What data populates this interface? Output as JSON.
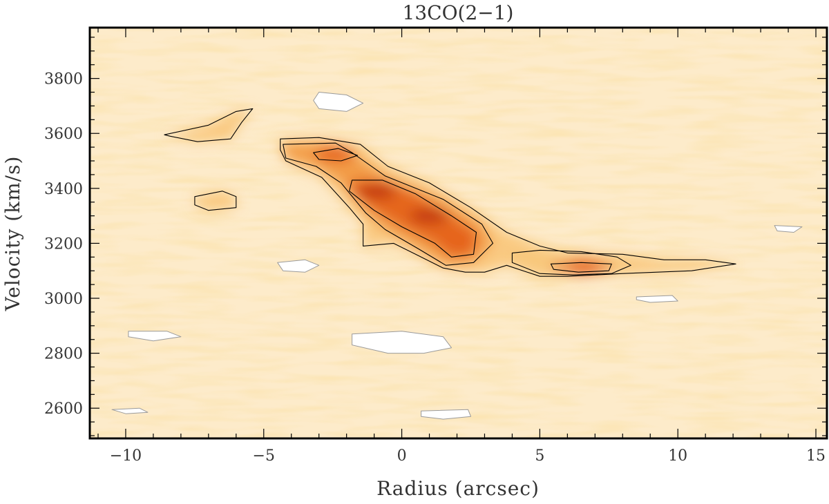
{
  "chart_data": {
    "type": "heatmap",
    "title": "13CO(2−1)",
    "xlabel": "Radius (arcsec)",
    "ylabel": "Velocity (km/s)",
    "xlim": [
      -11.3,
      15.4
    ],
    "ylim": [
      2490,
      3985
    ],
    "x_ticks": [
      -10,
      -5,
      0,
      5,
      10,
      15
    ],
    "x_tick_labels": [
      "−10",
      "−5",
      "0",
      "5",
      "10",
      "15"
    ],
    "y_ticks": [
      2600,
      2800,
      3000,
      3200,
      3400,
      3600,
      3800
    ],
    "y_tick_labels": [
      "2600",
      "2800",
      "3000",
      "3200",
      "3400",
      "3600",
      "3800"
    ],
    "colormap": [
      "#ffffff",
      "#fde9c6",
      "#f9c77c",
      "#f39a45",
      "#e5641c",
      "#c0360e"
    ],
    "contour_color": "#000000",
    "negative_contour_color": "#9a9a9a",
    "emission_ridge": [
      {
        "x": -4.2,
        "y": 3550
      },
      {
        "x": -2.5,
        "y": 3530
      },
      {
        "x": -1.0,
        "y": 3400
      },
      {
        "x": 0.5,
        "y": 3320
      },
      {
        "x": 2.0,
        "y": 3220
      },
      {
        "x": 4.0,
        "y": 3150
      },
      {
        "x": 6.5,
        "y": 3120
      },
      {
        "x": 9.0,
        "y": 3110
      },
      {
        "x": 12.0,
        "y": 3120
      }
    ],
    "peaks": [
      {
        "x": -2.4,
        "y": 3525,
        "level": "high"
      },
      {
        "x": -0.9,
        "y": 3390,
        "level": "peak"
      },
      {
        "x": 1.0,
        "y": 3300,
        "level": "peak"
      },
      {
        "x": 2.0,
        "y": 3210,
        "level": "high"
      },
      {
        "x": 6.6,
        "y": 3115,
        "level": "high"
      }
    ],
    "contours": [
      {
        "level": 1,
        "points": [
          [
            -4.4,
            3580
          ],
          [
            -3.0,
            3585
          ],
          [
            -1.5,
            3560
          ],
          [
            -0.5,
            3480
          ],
          [
            1.0,
            3420
          ],
          [
            2.5,
            3330
          ],
          [
            3.8,
            3240
          ],
          [
            5.0,
            3190
          ],
          [
            6.0,
            3165
          ],
          [
            8.0,
            3160
          ],
          [
            9.5,
            3140
          ],
          [
            11.0,
            3140
          ],
          [
            12.1,
            3125
          ],
          [
            10.5,
            3100
          ],
          [
            8.0,
            3090
          ],
          [
            6.0,
            3080
          ],
          [
            5.0,
            3080
          ],
          [
            3.8,
            3120
          ],
          [
            3.0,
            3095
          ],
          [
            2.3,
            3095
          ],
          [
            1.5,
            3110
          ],
          [
            0.5,
            3160
          ],
          [
            -0.3,
            3200
          ],
          [
            -1.4,
            3190
          ],
          [
            -1.4,
            3270
          ],
          [
            -1.9,
            3330
          ],
          [
            -2.9,
            3440
          ],
          [
            -4.2,
            3500
          ],
          [
            -4.4,
            3540
          ]
        ]
      },
      {
        "level": 2,
        "points": [
          [
            -4.3,
            3560
          ],
          [
            -2.4,
            3565
          ],
          [
            -1.8,
            3530
          ],
          [
            -0.6,
            3445
          ],
          [
            1.5,
            3360
          ],
          [
            2.9,
            3270
          ],
          [
            3.3,
            3200
          ],
          [
            2.6,
            3130
          ],
          [
            1.6,
            3120
          ],
          [
            0.6,
            3180
          ],
          [
            -0.6,
            3250
          ],
          [
            -1.3,
            3310
          ],
          [
            -2.2,
            3420
          ],
          [
            -3.1,
            3480
          ],
          [
            -4.2,
            3510
          ]
        ]
      },
      {
        "level": 3,
        "points": [
          [
            -1.8,
            3430
          ],
          [
            -0.7,
            3430
          ],
          [
            0.5,
            3380
          ],
          [
            1.8,
            3300
          ],
          [
            2.7,
            3240
          ],
          [
            2.6,
            3160
          ],
          [
            1.8,
            3150
          ],
          [
            1.2,
            3200
          ],
          [
            0.0,
            3260
          ],
          [
            -1.0,
            3320
          ],
          [
            -1.9,
            3390
          ]
        ]
      },
      {
        "level": 4,
        "points": [
          [
            -3.2,
            3530
          ],
          [
            -2.3,
            3545
          ],
          [
            -1.6,
            3520
          ],
          [
            -2.2,
            3500
          ],
          [
            -3.0,
            3505
          ]
        ]
      },
      {
        "level": 4,
        "points": [
          [
            5.4,
            3125
          ],
          [
            6.5,
            3130
          ],
          [
            7.6,
            3125
          ],
          [
            7.5,
            3100
          ],
          [
            6.4,
            3095
          ],
          [
            5.5,
            3105
          ]
        ]
      },
      {
        "level": 1,
        "points": [
          [
            4.0,
            3165
          ],
          [
            5.0,
            3175
          ],
          [
            6.5,
            3170
          ],
          [
            7.8,
            3150
          ],
          [
            8.3,
            3120
          ],
          [
            7.6,
            3090
          ],
          [
            6.2,
            3085
          ],
          [
            5.0,
            3090
          ],
          [
            4.0,
            3130
          ]
        ]
      },
      {
        "level": 1,
        "points": [
          [
            -8.6,
            3595
          ],
          [
            -7.0,
            3630
          ],
          [
            -6.0,
            3680
          ],
          [
            -5.4,
            3690
          ],
          [
            -5.8,
            3640
          ],
          [
            -6.2,
            3580
          ],
          [
            -7.4,
            3570
          ],
          [
            -8.4,
            3590
          ]
        ]
      },
      {
        "level": 1,
        "points": [
          [
            -7.5,
            3370
          ],
          [
            -6.5,
            3390
          ],
          [
            -6.0,
            3370
          ],
          [
            -6.0,
            3330
          ],
          [
            -7.0,
            3320
          ],
          [
            -7.5,
            3340
          ]
        ]
      }
    ],
    "negative_contours": [
      {
        "points": [
          [
            -9.9,
            2880
          ],
          [
            -8.5,
            2880
          ],
          [
            -8.0,
            2860
          ],
          [
            -9.0,
            2845
          ],
          [
            -9.9,
            2860
          ]
        ]
      },
      {
        "points": [
          [
            -4.5,
            3130
          ],
          [
            -3.5,
            3140
          ],
          [
            -3.0,
            3120
          ],
          [
            -3.5,
            3095
          ],
          [
            -4.3,
            3100
          ]
        ]
      },
      {
        "points": [
          [
            -1.8,
            2870
          ],
          [
            0.0,
            2880
          ],
          [
            1.5,
            2860
          ],
          [
            1.8,
            2820
          ],
          [
            0.8,
            2800
          ],
          [
            -0.5,
            2800
          ],
          [
            -1.8,
            2830
          ]
        ]
      },
      {
        "points": [
          [
            -3.0,
            3750
          ],
          [
            -2.0,
            3740
          ],
          [
            -1.4,
            3710
          ],
          [
            -2.0,
            3680
          ],
          [
            -3.0,
            3690
          ],
          [
            -3.2,
            3720
          ]
        ]
      },
      {
        "points": [
          [
            0.7,
            2590
          ],
          [
            2.4,
            2595
          ],
          [
            2.5,
            2570
          ],
          [
            1.5,
            2560
          ],
          [
            0.7,
            2570
          ]
        ]
      },
      {
        "points": [
          [
            8.5,
            3005
          ],
          [
            9.8,
            3010
          ],
          [
            10.0,
            2990
          ],
          [
            9.0,
            2985
          ],
          [
            8.5,
            2995
          ]
        ]
      },
      {
        "points": [
          [
            -10.5,
            2595
          ],
          [
            -9.5,
            2600
          ],
          [
            -9.2,
            2585
          ],
          [
            -10.0,
            2580
          ]
        ]
      },
      {
        "points": [
          [
            13.5,
            3265
          ],
          [
            14.5,
            3260
          ],
          [
            14.2,
            3240
          ],
          [
            13.6,
            3245
          ]
        ]
      }
    ],
    "grid": false,
    "legend": "none"
  }
}
